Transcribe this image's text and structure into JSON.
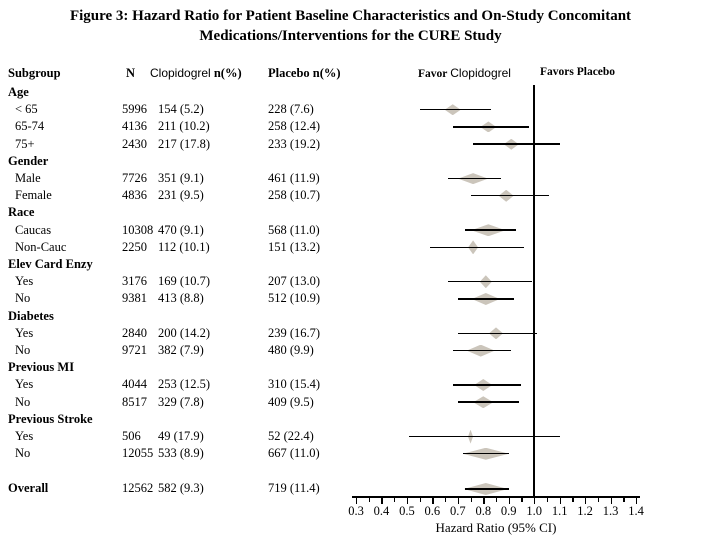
{
  "title": {
    "line1": "Figure 3: Hazard Ratio for Patient Baseline Characteristics and On-Study Concomitant",
    "line2": "Medications/Interventions for the CURE Study"
  },
  "columns": {
    "subgroup": "Subgroup",
    "n": "N",
    "clopidogrel_drug": "Clopidogrel",
    "clopidogrel_metric": "n(%)",
    "placebo": "Placebo n(%)"
  },
  "plot_header": {
    "favor_left_prefix": "Favor",
    "favor_left_drug": "Clopidogrel",
    "favor_right": "Favors Placebo"
  },
  "axis": {
    "xlabel": "Hazard Ratio (95% CI)",
    "min": 0.3,
    "max": 1.4,
    "reference": 1.0,
    "minor_step": 0.05,
    "tick_labels": [
      "0.3",
      "0.4",
      "0.5",
      "0.6",
      "0.7",
      "0.8",
      "0.9",
      "1.0",
      "1.1",
      "1.2",
      "1.3",
      "1.4"
    ]
  },
  "colors": {
    "diamond_fill": "#cbc5bb",
    "line": "#000000",
    "text": "#000000",
    "background": "#ffffff"
  },
  "chart_data": {
    "type": "forest",
    "title": "Figure 3: Hazard Ratio for Patient Baseline Characteristics and On-Study Concomitant Medications/Interventions for the CURE Study",
    "xlabel": "Hazard Ratio (95% CI)",
    "xlim": [
      0.3,
      1.4
    ],
    "xticks": [
      0.3,
      0.4,
      0.5,
      0.6,
      0.7,
      0.8,
      0.9,
      1.0,
      1.1,
      1.2,
      1.3,
      1.4
    ],
    "reference_line": 1.0,
    "favor_left": "Favor Clopidogrel",
    "favor_right": "Favors Placebo",
    "rows": [
      {
        "kind": "group",
        "label": "Age"
      },
      {
        "kind": "item",
        "label": "< 65",
        "n": "5996",
        "clopidogrel": "154 (5.2)",
        "placebo": "228 (7.6)",
        "hr": 0.68,
        "ci_low": 0.55,
        "ci_high": 0.83,
        "dw": 16,
        "dh": 11
      },
      {
        "kind": "item",
        "label": "65-74",
        "n": "4136",
        "clopidogrel": "211 (10.2)",
        "placebo": "258 (12.4)",
        "hr": 0.82,
        "ci_low": 0.68,
        "ci_high": 0.98,
        "dw": 16,
        "dh": 11
      },
      {
        "kind": "item",
        "label": "75+",
        "n": "2430",
        "clopidogrel": "217 (17.8)",
        "placebo": "233 (19.2)",
        "hr": 0.91,
        "ci_low": 0.76,
        "ci_high": 1.1,
        "dw": 15,
        "dh": 11
      },
      {
        "kind": "group",
        "label": "Gender"
      },
      {
        "kind": "item",
        "label": "Male",
        "n": "7726",
        "clopidogrel": "351 (9.1)",
        "placebo": "461 (11.9)",
        "hr": 0.76,
        "ci_low": 0.66,
        "ci_high": 0.87,
        "dw": 30,
        "dh": 11
      },
      {
        "kind": "item",
        "label": "Female",
        "n": "4836",
        "clopidogrel": "231 (9.5)",
        "placebo": "258 (10.7)",
        "hr": 0.89,
        "ci_low": 0.75,
        "ci_high": 1.06,
        "dw": 15,
        "dh": 12
      },
      {
        "kind": "group",
        "label": "Race"
      },
      {
        "kind": "item",
        "label": "Caucas",
        "n": "10308",
        "clopidogrel": "470 (9.1)",
        "placebo": "568 (11.0)",
        "hr": 0.82,
        "ci_low": 0.73,
        "ci_high": 0.93,
        "dw": 34,
        "dh": 12
      },
      {
        "kind": "item",
        "label": "Non-Cauc",
        "n": "2250",
        "clopidogrel": "112 (10.1)",
        "placebo": "151 (13.2)",
        "hr": 0.76,
        "ci_low": 0.59,
        "ci_high": 0.96,
        "dw": 10,
        "dh": 14
      },
      {
        "kind": "group",
        "label": "Elev Card Enzy"
      },
      {
        "kind": "item",
        "label": "Yes",
        "n": "3176",
        "clopidogrel": "169 (10.7)",
        "placebo": "207 (13.0)",
        "hr": 0.81,
        "ci_low": 0.66,
        "ci_high": 0.99,
        "dw": 12,
        "dh": 13
      },
      {
        "kind": "item",
        "label": "No",
        "n": "9381",
        "clopidogrel": "413 (8.8)",
        "placebo": "512 (10.9)",
        "hr": 0.81,
        "ci_low": 0.7,
        "ci_high": 0.92,
        "dw": 28,
        "dh": 12
      },
      {
        "kind": "group",
        "label": "Diabetes"
      },
      {
        "kind": "item",
        "label": "Yes",
        "n": "2840",
        "clopidogrel": "200 (14.2)",
        "placebo": "239 (16.7)",
        "hr": 0.85,
        "ci_low": 0.7,
        "ci_high": 1.01,
        "dw": 14,
        "dh": 12
      },
      {
        "kind": "item",
        "label": "No",
        "n": "9721",
        "clopidogrel": "382 (7.9)",
        "placebo": "480 (9.9)",
        "hr": 0.79,
        "ci_low": 0.68,
        "ci_high": 0.91,
        "dw": 28,
        "dh": 12
      },
      {
        "kind": "group",
        "label": "Previous MI"
      },
      {
        "kind": "item",
        "label": "Yes",
        "n": "4044",
        "clopidogrel": "253 (12.5)",
        "placebo": "310 (15.4)",
        "hr": 0.8,
        "ci_low": 0.68,
        "ci_high": 0.95,
        "dw": 18,
        "dh": 12
      },
      {
        "kind": "item",
        "label": "No",
        "n": "8517",
        "clopidogrel": "329 (7.8)",
        "placebo": "409 (9.5)",
        "hr": 0.8,
        "ci_low": 0.7,
        "ci_high": 0.94,
        "dw": 20,
        "dh": 12
      },
      {
        "kind": "group",
        "label": "Previous Stroke"
      },
      {
        "kind": "item",
        "label": "Yes",
        "n": "506",
        "clopidogrel": "49 (17.9)",
        "placebo": "52 (22.4)",
        "hr": 0.75,
        "ci_low": 0.51,
        "ci_high": 1.1,
        "dw": 5,
        "dh": 14
      },
      {
        "kind": "item",
        "label": "No",
        "n": "12055",
        "clopidogrel": "533 (8.9)",
        "placebo": "667 (11.0)",
        "hr": 0.81,
        "ci_low": 0.72,
        "ci_high": 0.9,
        "dw": 46,
        "dh": 12
      },
      {
        "kind": "spacer"
      },
      {
        "kind": "overall",
        "label": "Overall",
        "n": "12562",
        "clopidogrel": "582 (9.3)",
        "placebo": "719 (11.4)",
        "hr": 0.81,
        "ci_low": 0.73,
        "ci_high": 0.9,
        "dw": 44,
        "dh": 12
      }
    ]
  }
}
